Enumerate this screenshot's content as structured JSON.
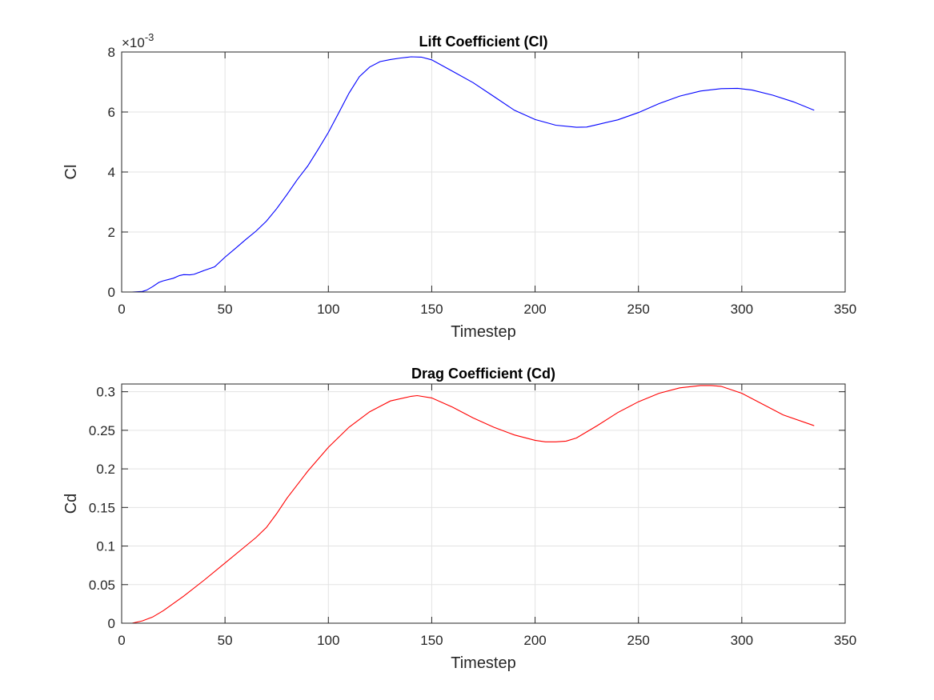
{
  "chart_data": [
    {
      "type": "line",
      "title": "Lift Coefficient (Cl)",
      "xlabel": "Timestep",
      "ylabel": "Cl",
      "exponent_prefix": "×10",
      "exponent_power": "-3",
      "xlim": [
        0,
        350
      ],
      "ylim": [
        0,
        8
      ],
      "xticks": [
        "0",
        "50",
        "100",
        "150",
        "200",
        "250",
        "300",
        "350"
      ],
      "yticks": [
        "0",
        "2",
        "4",
        "6",
        "8"
      ],
      "grid": true,
      "color": "#0000ff",
      "series": [
        {
          "x": [
            0,
            5,
            10,
            12,
            15,
            18,
            20,
            25,
            28,
            30,
            33,
            35,
            40,
            45,
            50,
            55,
            60,
            65,
            70,
            75,
            80,
            85,
            90,
            95,
            100,
            105,
            110,
            115,
            120,
            125,
            130,
            135,
            140,
            145,
            150,
            160,
            170,
            180,
            190,
            200,
            210,
            220,
            225,
            230,
            240,
            250,
            260,
            270,
            280,
            290,
            298,
            305,
            315,
            325,
            335
          ],
          "y": [
            0,
            0,
            0.02,
            0.06,
            0.18,
            0.32,
            0.37,
            0.46,
            0.55,
            0.58,
            0.57,
            0.59,
            0.72,
            0.84,
            1.16,
            1.45,
            1.75,
            2.03,
            2.36,
            2.78,
            3.25,
            3.75,
            4.2,
            4.75,
            5.32,
            5.97,
            6.63,
            7.18,
            7.5,
            7.68,
            7.75,
            7.8,
            7.84,
            7.83,
            7.74,
            7.36,
            6.98,
            6.52,
            6.06,
            5.75,
            5.56,
            5.49,
            5.5,
            5.58,
            5.74,
            5.98,
            6.28,
            6.53,
            6.7,
            6.78,
            6.79,
            6.73,
            6.56,
            6.34,
            6.06
          ]
        }
      ]
    },
    {
      "type": "line",
      "title": "Drag Coefficient (Cd)",
      "xlabel": "Timestep",
      "ylabel": "Cd",
      "xlim": [
        0,
        350
      ],
      "ylim": [
        0,
        0.31
      ],
      "xticks": [
        "0",
        "50",
        "100",
        "150",
        "200",
        "250",
        "300",
        "350"
      ],
      "yticks": [
        "0",
        "0.05",
        "0.1",
        "0.15",
        "0.2",
        "0.25",
        "0.3"
      ],
      "grid": true,
      "color": "#ff0000",
      "series": [
        {
          "x": [
            0,
            5,
            10,
            15,
            20,
            30,
            40,
            50,
            60,
            65,
            70,
            75,
            80,
            90,
            100,
            110,
            120,
            130,
            140,
            143,
            150,
            160,
            170,
            180,
            190,
            200,
            205,
            210,
            215,
            220,
            230,
            240,
            250,
            260,
            270,
            280,
            285,
            290,
            300,
            310,
            320,
            335
          ],
          "y": [
            0,
            0,
            0.003,
            0.008,
            0.016,
            0.035,
            0.056,
            0.078,
            0.1,
            0.111,
            0.124,
            0.142,
            0.162,
            0.197,
            0.228,
            0.254,
            0.274,
            0.288,
            0.294,
            0.295,
            0.292,
            0.28,
            0.266,
            0.254,
            0.244,
            0.237,
            0.235,
            0.235,
            0.236,
            0.24,
            0.256,
            0.273,
            0.287,
            0.298,
            0.305,
            0.308,
            0.308,
            0.307,
            0.298,
            0.284,
            0.27,
            0.256
          ]
        }
      ]
    }
  ]
}
